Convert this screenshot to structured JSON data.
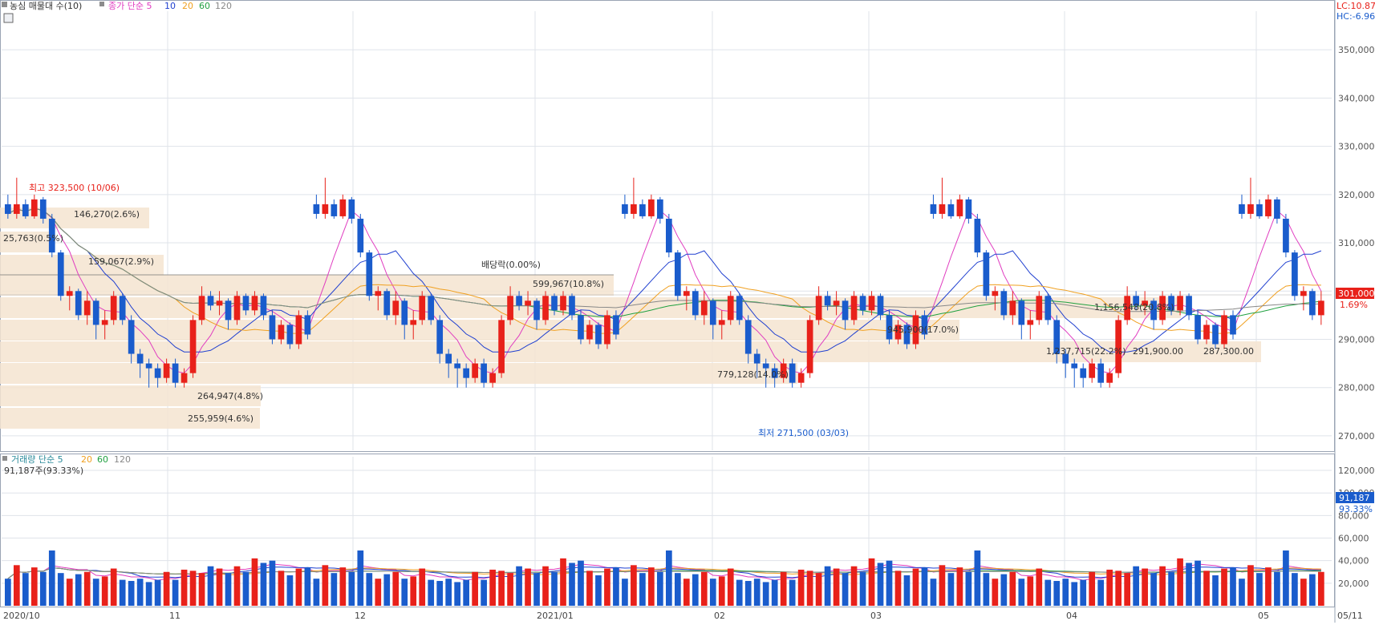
{
  "title_bar": {
    "price_legend_label": "농심 매물대 수(10)",
    "ma_label": "종가 단순 5",
    "ma_periods": [
      "10",
      "20",
      "60",
      "120"
    ],
    "lc_label": "LC:10.87",
    "hc_label": "HC:-6.96"
  },
  "volume_legend": {
    "label": "거래량 단순 5",
    "ma_periods": [
      "20",
      "60",
      "120"
    ],
    "last_volume_text": "91,187주(93.33%)"
  },
  "price_axis_ticks": [
    "350,000",
    "340,000",
    "330,000",
    "320,000",
    "310,000",
    "300,000",
    "290,000",
    "280,000",
    "270,000"
  ],
  "volume_axis_ticks": [
    "120,000",
    "100,000",
    "80,000",
    "60,000",
    "40,000",
    "20,000"
  ],
  "date_ticks": [
    "2020/10",
    "11",
    "12",
    "2021/01",
    "02",
    "03",
    "04",
    "05",
    "05/11"
  ],
  "current_price": {
    "value_label": "301,000",
    "change_label": "1.69%"
  },
  "current_volume": {
    "value_label": "91,187",
    "change_label": "93.33%"
  },
  "high_marker": "최고 323,500 (10/06)",
  "low_marker": "최저 271,500 (03/03)",
  "dividend_label": "배당락(0.00%)",
  "volume_profile_labels": [
    "146,270(2.6%)",
    "25,763(0.5%)",
    "159,067(2.9%)",
    "599,967(10.8%)",
    "1,156,548(20.8%)",
    "945,900(17.0%)",
    "1,237,715(22.2%)",
    "291,900.00",
    "287,300.00",
    "779,128(14.0%)",
    "264,947(4.8%)",
    "255,959(4.6%)"
  ],
  "colors": {
    "up": "#e8211a",
    "down": "#1a5ccc",
    "ma5": "#e03cc0",
    "ma10": "#2040d0",
    "ma20": "#f0a020",
    "ma60": "#20a040",
    "ma120": "#888888",
    "profile": "#f5e4d0"
  },
  "chart_data": {
    "type": "candlestick",
    "ylim": [
      267000,
      358000
    ],
    "volume_ylim": [
      0,
      125000
    ],
    "candles": [
      [
        318000,
        320000,
        315000,
        316000,
        24000
      ],
      [
        316000,
        323500,
        315000,
        318000,
        36000
      ],
      [
        318000,
        319000,
        315000,
        315500,
        29000
      ],
      [
        315500,
        320000,
        315000,
        319000,
        34000
      ],
      [
        319000,
        319500,
        314000,
        315000,
        30000
      ],
      [
        315000,
        316000,
        307000,
        308000,
        49000
      ],
      [
        308000,
        308500,
        298000,
        299000,
        29000
      ],
      [
        299000,
        301000,
        296000,
        300000,
        24000
      ],
      [
        300000,
        300500,
        294000,
        295000,
        28000
      ],
      [
        295000,
        300000,
        293000,
        298000,
        30000
      ],
      [
        298000,
        298500,
        290000,
        293000,
        24000
      ],
      [
        293000,
        296000,
        290000,
        294000,
        26000
      ],
      [
        294000,
        300000,
        293000,
        299000,
        33000
      ],
      [
        299000,
        299500,
        293000,
        294000,
        23000
      ],
      [
        294000,
        295000,
        285000,
        287000,
        22000
      ],
      [
        287000,
        288000,
        282000,
        285000,
        24000
      ],
      [
        285000,
        286000,
        280000,
        284000,
        21000
      ],
      [
        284000,
        285000,
        280000,
        282000,
        23000
      ],
      [
        282000,
        286000,
        281000,
        285000,
        30000
      ],
      [
        285000,
        286000,
        280000,
        281000,
        23000
      ],
      [
        281000,
        284000,
        280000,
        283000,
        32000
      ],
      [
        283000,
        295000,
        282000,
        294000,
        31000
      ],
      [
        294000,
        301000,
        293000,
        299000,
        29000
      ],
      [
        299000,
        300000,
        296000,
        297000,
        35000
      ],
      [
        297000,
        300000,
        295000,
        298000,
        33000
      ],
      [
        298000,
        298500,
        292000,
        294000,
        29000
      ],
      [
        294000,
        300000,
        293000,
        299000,
        35000
      ],
      [
        299000,
        299500,
        295000,
        296000,
        30000
      ],
      [
        296000,
        300000,
        295000,
        299000,
        42000
      ],
      [
        299000,
        299500,
        294000,
        295000,
        38000
      ],
      [
        295000,
        296000,
        289000,
        290000,
        40000
      ],
      [
        290000,
        294000,
        289000,
        293000,
        31000
      ],
      [
        293000,
        293500,
        288000,
        289000,
        27000
      ],
      [
        289000,
        296000,
        288000,
        295000,
        33000
      ],
      [
        295000,
        296000,
        290000,
        291000,
        34000
      ]
    ],
    "ma_note": "moving averages computed in script"
  }
}
